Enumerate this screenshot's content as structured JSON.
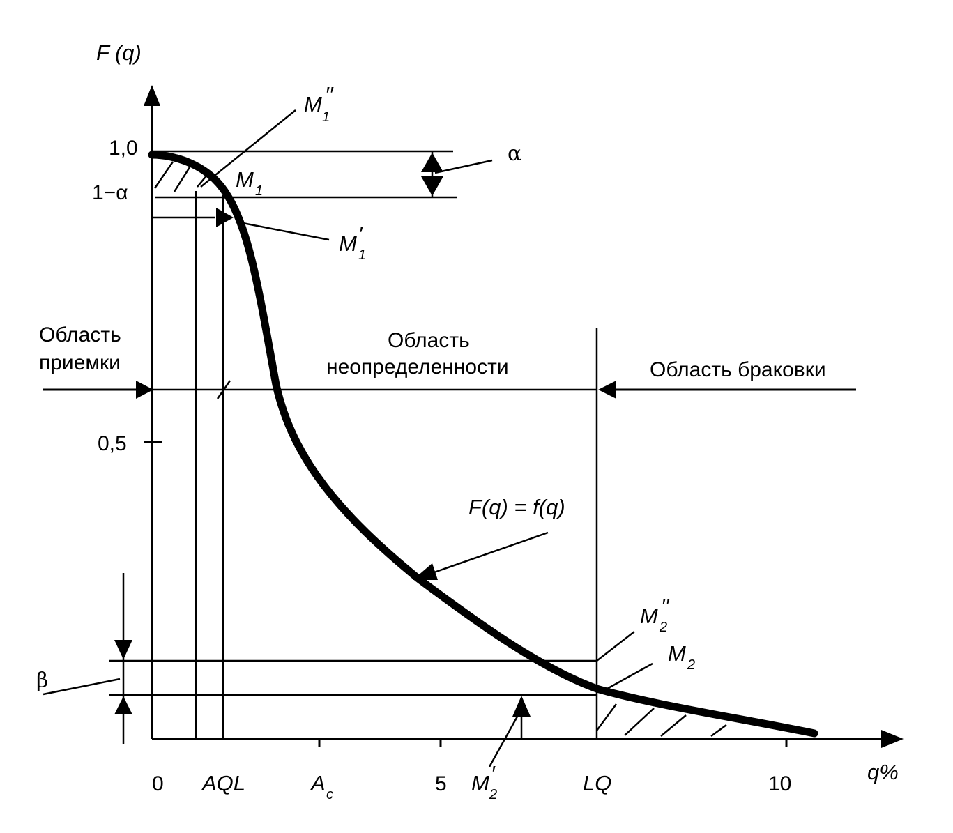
{
  "axes": {
    "y_label": "F (q)",
    "x_label": "q%",
    "y_ticks": {
      "one": "1,0",
      "one_minus_alpha": "1−α",
      "half": "0,5"
    },
    "x_ticks": {
      "zero": "0",
      "aql": "AQL",
      "ac_main": "A",
      "ac_sub": "c",
      "five": "5",
      "lq": "LQ",
      "ten": "10"
    }
  },
  "regions": {
    "acceptance": [
      "Область",
      "приемки"
    ],
    "uncertainty": [
      "Область",
      "неопределенности"
    ],
    "rejection": "Область браковки"
  },
  "curve_label": "F(q) = f(q)",
  "symbols": {
    "alpha": "α",
    "beta": "β",
    "M": "M",
    "sub1": "1",
    "sub2": "2",
    "dprime": "′′",
    "prime": "′"
  }
}
